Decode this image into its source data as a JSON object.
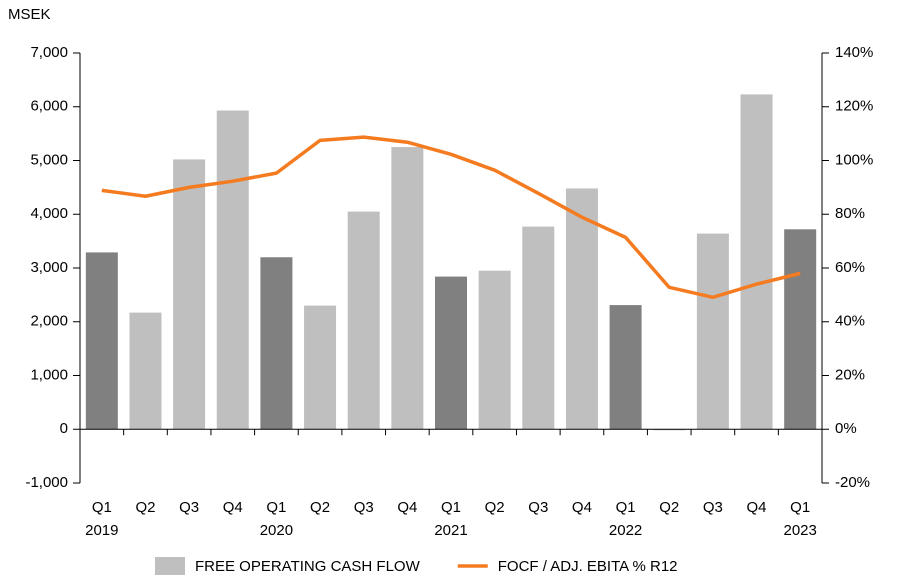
{
  "chart_data": {
    "type": "combo",
    "y_axis_label": "MSEK",
    "categories": [
      "Q1",
      "Q2",
      "Q3",
      "Q4",
      "Q1",
      "Q2",
      "Q3",
      "Q4",
      "Q1",
      "Q2",
      "Q3",
      "Q4",
      "Q1",
      "Q2",
      "Q3",
      "Q4",
      "Q1"
    ],
    "category_years": [
      "2019",
      null,
      null,
      null,
      "2020",
      null,
      null,
      null,
      "2021",
      null,
      null,
      null,
      "2022",
      null,
      null,
      null,
      "2023"
    ],
    "series": [
      {
        "name": "FREE OPERATING CASH FLOW",
        "type": "bar",
        "color": "#bfbfbf",
        "bar_colors": [
          "#808080",
          "#bfbfbf",
          "#bfbfbf",
          "#bfbfbf",
          "#808080",
          "#bfbfbf",
          "#bfbfbf",
          "#bfbfbf",
          "#808080",
          "#bfbfbf",
          "#bfbfbf",
          "#bfbfbf",
          "#808080",
          "#bfbfbf",
          "#bfbfbf",
          "#bfbfbf",
          "#808080"
        ],
        "values": [
          3290,
          2170,
          5020,
          5930,
          3200,
          2300,
          4050,
          5250,
          2840,
          2950,
          3770,
          4480,
          2310,
          -20,
          3640,
          6230,
          3720
        ]
      },
      {
        "name": "FOCF / ADJ. EBITA % R12",
        "type": "line",
        "color": "#f47b20",
        "axis": "y2",
        "values": [
          88.9,
          86.7,
          90,
          92.3,
          95.3,
          107.5,
          108.7,
          106.8,
          102.3,
          96.4,
          87.8,
          78.9,
          71.4,
          52.8,
          49.1,
          54,
          58
        ]
      }
    ],
    "ylim": [
      -1000,
      7000
    ],
    "yticks": [
      {
        "value": -1000,
        "label": "-1,000"
      },
      0,
      {
        "value": 1000,
        "label": "1,000"
      },
      {
        "value": 2000,
        "label": "2,000"
      },
      {
        "value": 3000,
        "label": "3,000"
      },
      {
        "value": 4000,
        "label": "4,000"
      },
      {
        "value": 5000,
        "label": "5,000"
      },
      {
        "value": 6000,
        "label": "6,000"
      },
      {
        "value": 7000,
        "label": "7,000"
      }
    ],
    "y2lim": [
      -20,
      140
    ],
    "y2ticks": [
      {
        "value": -20,
        "label": "-20%"
      },
      {
        "value": 0,
        "label": "0%"
      },
      {
        "value": 20,
        "label": "20%"
      },
      {
        "value": 40,
        "label": "40%"
      },
      {
        "value": 60,
        "label": "60%"
      },
      {
        "value": 80,
        "label": "80%"
      },
      {
        "value": 100,
        "label": "100%"
      },
      {
        "value": 120,
        "label": "120%"
      },
      {
        "value": 140,
        "label": "140%"
      }
    ]
  }
}
